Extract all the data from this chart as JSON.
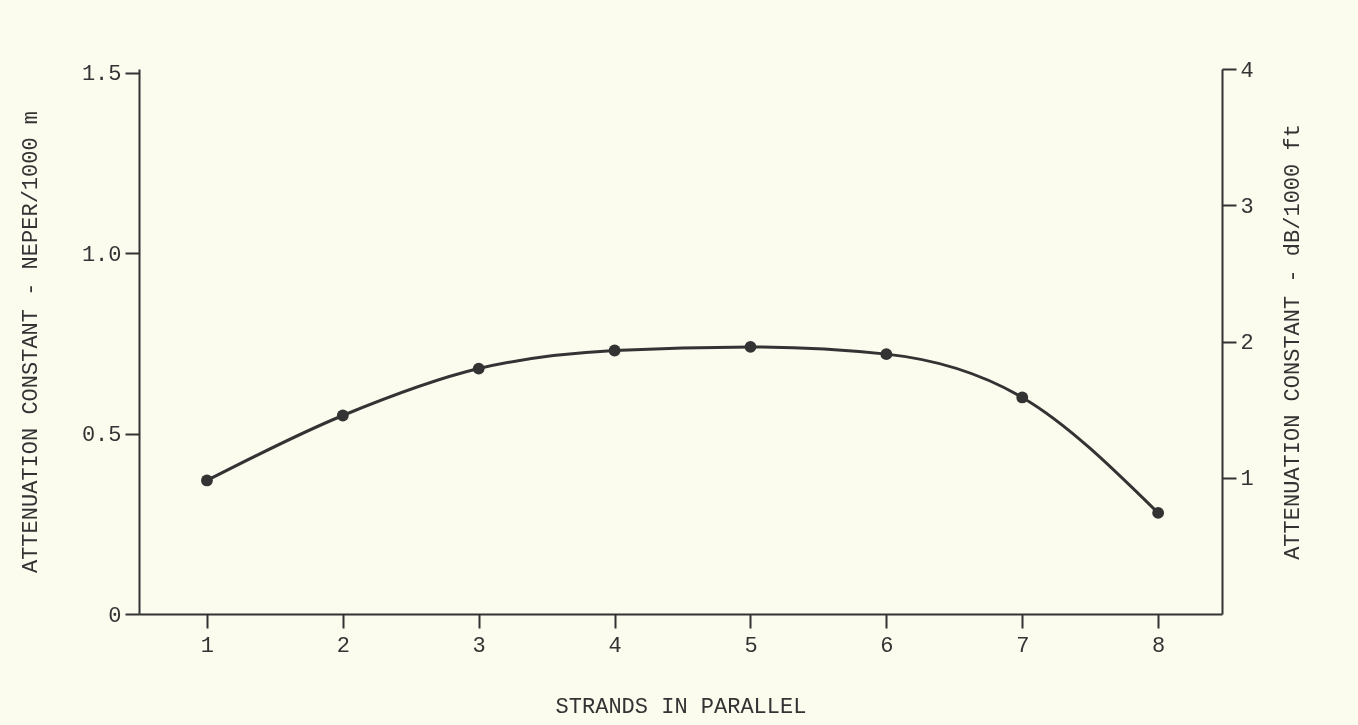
{
  "chart_data": {
    "type": "line",
    "xlabel": "STRANDS IN PARALLEL",
    "ylabel": "ATTENUATION CONSTANT - NEPER/1000 m",
    "y2label": "ATTENUATION CONSTANT - dB/1000 ft",
    "x": [
      1,
      2,
      3,
      4,
      5,
      6,
      7,
      8
    ],
    "series": [
      {
        "color": "#333333",
        "values": [
          0.37,
          0.55,
          0.68,
          0.73,
          0.74,
          0.72,
          0.6,
          0.28
        ]
      }
    ],
    "xlim": [
      0.5,
      8.47
    ],
    "xticks": [
      1,
      2,
      3,
      4,
      5,
      6,
      7,
      8
    ],
    "ylim": [
      0,
      1.51
    ],
    "yticks": [
      0,
      {
        "value": 0.5,
        "label": "0.5"
      },
      {
        "value": 1.0,
        "label": "1.0"
      },
      {
        "value": 1.5,
        "label": "1.5"
      }
    ],
    "y2lim": [
      0,
      4
    ],
    "y2ticks": [
      1,
      2,
      3,
      4
    ],
    "marker": "circle",
    "line_style": "solid",
    "grid": false
  }
}
